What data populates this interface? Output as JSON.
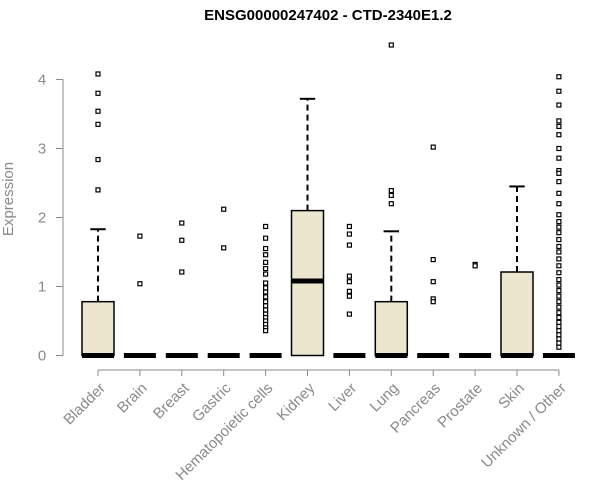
{
  "chart_data": {
    "type": "box",
    "title": "ENSG00000247402 - CTD-2340E1.2",
    "ylabel": "Expression",
    "xlabel": "",
    "ylim": [
      0,
      4.5
    ],
    "yticks": [
      0,
      1,
      2,
      3,
      4
    ],
    "grid": false,
    "box_fill": "#ede6cf",
    "categories": [
      "Bladder",
      "Brain",
      "Breast",
      "Gastric",
      "Hematopoietic cells",
      "Kidney",
      "Liver",
      "Lung",
      "Pancreas",
      "Prostate",
      "Skin",
      "Unknown / Other"
    ],
    "boxes": [
      {
        "category": "Bladder",
        "min": 0,
        "q1": 0,
        "median": 0,
        "q3": 0.78,
        "whisker_high": 1.83,
        "outliers": [
          4.08,
          3.8,
          3.54,
          3.35,
          2.84,
          2.4
        ]
      },
      {
        "category": "Brain",
        "min": 0,
        "q1": 0,
        "median": 0,
        "q3": 0,
        "whisker_high": 0,
        "outliers": [
          1.73,
          1.04
        ]
      },
      {
        "category": "Breast",
        "min": 0,
        "q1": 0,
        "median": 0,
        "q3": 0,
        "whisker_high": 0,
        "outliers": [
          1.92,
          1.67,
          1.21
        ]
      },
      {
        "category": "Gastric",
        "min": 0,
        "q1": 0,
        "median": 0,
        "q3": 0,
        "whisker_high": 0,
        "outliers": [
          2.12,
          1.56
        ]
      },
      {
        "category": "Hematopoietic cells",
        "min": 0,
        "q1": 0,
        "median": 0,
        "q3": 0,
        "whisker_high": 0,
        "outliers": [
          1.87,
          1.7,
          1.55,
          1.46,
          1.35,
          1.26,
          1.18,
          1.05,
          0.98,
          0.92,
          0.85,
          0.78,
          0.72,
          0.66,
          0.6,
          0.55,
          0.5,
          0.45,
          0.4,
          0.36
        ]
      },
      {
        "category": "Kidney",
        "min": 0,
        "q1": 0,
        "median": 1.08,
        "q3": 2.1,
        "whisker_high": 3.72,
        "outliers": []
      },
      {
        "category": "Liver",
        "min": 0,
        "q1": 0,
        "median": 0,
        "q3": 0,
        "whisker_high": 0,
        "outliers": [
          1.87,
          1.76,
          1.6,
          1.15,
          1.07,
          0.93,
          0.86,
          0.6
        ]
      },
      {
        "category": "Lung",
        "min": 0,
        "q1": 0,
        "median": 0,
        "q3": 0.78,
        "whisker_high": 1.8,
        "outliers": [
          4.5,
          2.39,
          2.32,
          2.2
        ]
      },
      {
        "category": "Pancreas",
        "min": 0,
        "q1": 0,
        "median": 0,
        "q3": 0,
        "whisker_high": 0,
        "outliers": [
          3.02,
          1.39,
          1.07,
          0.82,
          0.78
        ]
      },
      {
        "category": "Prostate",
        "min": 0,
        "q1": 0,
        "median": 0,
        "q3": 0,
        "whisker_high": 0,
        "outliers": [
          1.32,
          1.3
        ]
      },
      {
        "category": "Skin",
        "min": 0,
        "q1": 0,
        "median": 0,
        "q3": 1.21,
        "whisker_high": 2.45,
        "outliers": []
      },
      {
        "category": "Unknown / Other",
        "min": 0,
        "q1": 0,
        "median": 0,
        "q3": 0,
        "whisker_high": 0,
        "outliers": [
          4.04,
          3.83,
          3.63,
          3.4,
          3.32,
          3.2,
          3.0,
          2.86,
          2.68,
          2.64,
          2.52,
          2.35,
          2.2,
          2.04,
          1.94,
          1.86,
          1.78,
          1.68,
          1.58,
          1.5,
          1.4,
          1.3,
          1.2,
          1.1,
          1.02,
          0.94,
          0.86,
          0.78,
          0.7,
          0.62,
          0.55,
          0.48,
          0.42,
          0.36,
          0.3,
          0.24,
          0.18,
          0.12
        ]
      }
    ]
  }
}
